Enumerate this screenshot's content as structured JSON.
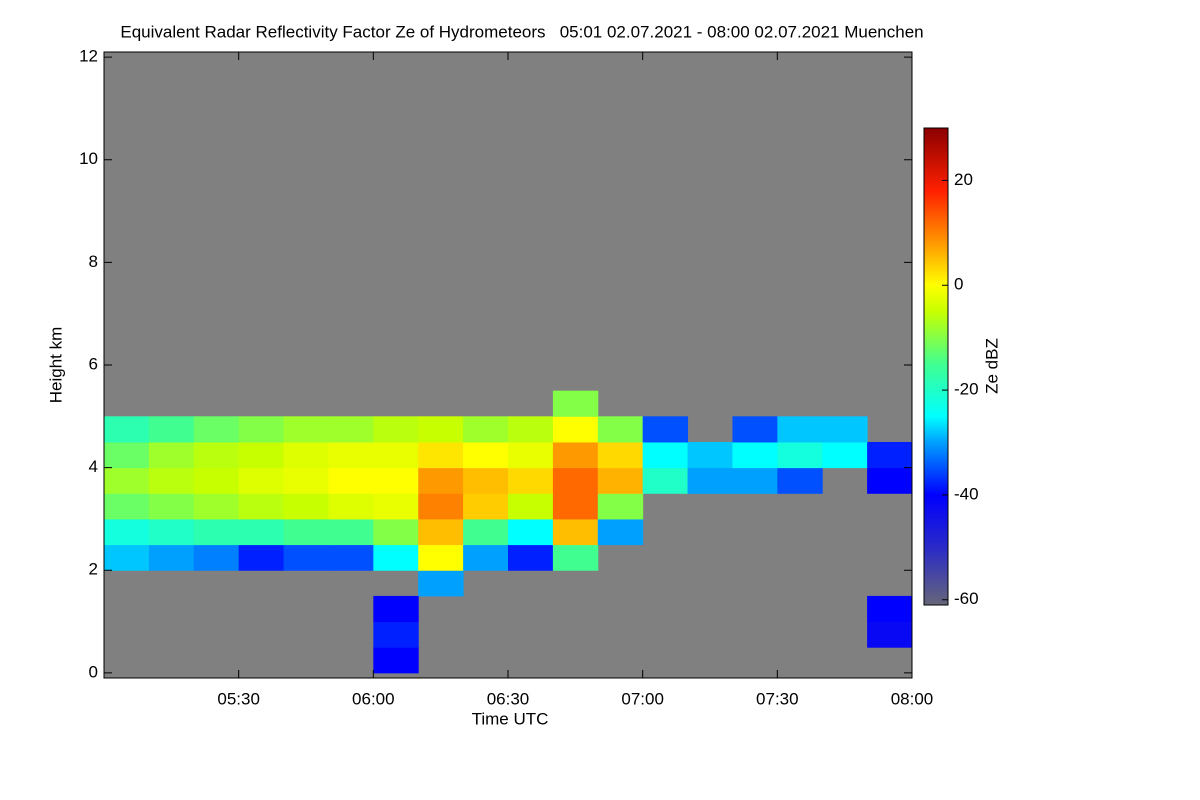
{
  "chart_data": {
    "type": "heatmap",
    "title": "Equivalent Radar Reflectivity Factor Ze of Hydrometeors   05:01 02.07.2021 - 08:00 02.07.2021 Muenchen",
    "x_label": "Time UTC",
    "y_label": "Height km",
    "colorbar_label": "Ze dBZ",
    "background": "#808080",
    "xlim": [
      300,
      480
    ],
    "xticks": [
      {
        "value": 330,
        "label": "05:30"
      },
      {
        "value": 360,
        "label": "06:00"
      },
      {
        "value": 390,
        "label": "06:30"
      },
      {
        "value": 420,
        "label": "07:00"
      },
      {
        "value": 450,
        "label": "07:30"
      },
      {
        "value": 480,
        "label": "08:00"
      }
    ],
    "ylim": [
      -0.1,
      12.1
    ],
    "yticks": [
      0,
      2,
      4,
      6,
      8,
      10,
      12
    ],
    "zlim": [
      -61,
      30
    ],
    "colorbar_ticks": [
      -60,
      -40,
      -20,
      0,
      20
    ],
    "colormap": [
      {
        "value": -61,
        "color": "#66667a"
      },
      {
        "value": -50,
        "color": "#2a2ac8"
      },
      {
        "value": -40,
        "color": "#0000ff"
      },
      {
        "value": -30,
        "color": "#00a0ff"
      },
      {
        "value": -25,
        "color": "#00ffff"
      },
      {
        "value": -15,
        "color": "#40ff90"
      },
      {
        "value": -5,
        "color": "#c8ff00"
      },
      {
        "value": 0,
        "color": "#ffff00"
      },
      {
        "value": 8,
        "color": "#ff9900"
      },
      {
        "value": 18,
        "color": "#ff2000"
      },
      {
        "value": 30,
        "color": "#8b0000"
      }
    ],
    "x_edges": [
      300,
      310,
      320,
      330,
      340,
      350,
      360,
      370,
      380,
      390,
      400,
      410,
      420,
      430,
      440,
      450,
      460,
      470,
      480
    ],
    "y_edges": [
      0,
      0.5,
      1,
      1.5,
      2,
      2.5,
      3,
      3.5,
      4,
      4.5,
      5,
      5.5,
      6
    ],
    "z": [
      [
        null,
        null,
        null,
        null,
        null,
        null,
        -40,
        null,
        null,
        null,
        null,
        null,
        null,
        null,
        null,
        null,
        null,
        null
      ],
      [
        null,
        null,
        null,
        null,
        null,
        null,
        -38,
        null,
        null,
        null,
        null,
        null,
        null,
        null,
        null,
        null,
        null,
        -42
      ],
      [
        null,
        null,
        null,
        null,
        null,
        null,
        -40,
        null,
        null,
        null,
        null,
        null,
        null,
        null,
        null,
        null,
        null,
        -40
      ],
      [
        null,
        null,
        null,
        null,
        null,
        null,
        null,
        -30,
        null,
        null,
        null,
        null,
        null,
        null,
        null,
        null,
        null,
        null
      ],
      [
        -28,
        -30,
        -32,
        -38,
        -35,
        -35,
        -25,
        0,
        -30,
        -38,
        -15,
        null,
        null,
        null,
        null,
        null,
        null,
        null
      ],
      [
        -22,
        -20,
        -18,
        -18,
        -15,
        -15,
        -10,
        5,
        -15,
        -25,
        5,
        -30,
        null,
        null,
        null,
        null,
        null,
        null
      ],
      [
        -12,
        -10,
        -8,
        -6,
        -5,
        -3,
        -2,
        10,
        4,
        -5,
        12,
        -10,
        null,
        null,
        null,
        null,
        null,
        null
      ],
      [
        -8,
        -6,
        -5,
        -3,
        -2,
        0,
        0,
        8,
        5,
        3,
        12,
        6,
        -20,
        -30,
        -30,
        -35,
        null,
        -40
      ],
      [
        -12,
        -8,
        -6,
        -5,
        -3,
        -2,
        -2,
        2,
        0,
        -2,
        8,
        3,
        -25,
        -28,
        -25,
        -22,
        -25,
        -38
      ],
      [
        -18,
        -15,
        -12,
        -10,
        -8,
        -8,
        -6,
        -5,
        -8,
        -6,
        0,
        -10,
        -35,
        null,
        -35,
        -28,
        -28,
        null
      ],
      [
        null,
        null,
        null,
        null,
        null,
        null,
        null,
        null,
        null,
        null,
        -10,
        null,
        null,
        null,
        null,
        null,
        null,
        null
      ],
      [
        null,
        null,
        null,
        null,
        null,
        null,
        null,
        null,
        null,
        null,
        null,
        null,
        null,
        null,
        null,
        null,
        null,
        null
      ]
    ]
  }
}
